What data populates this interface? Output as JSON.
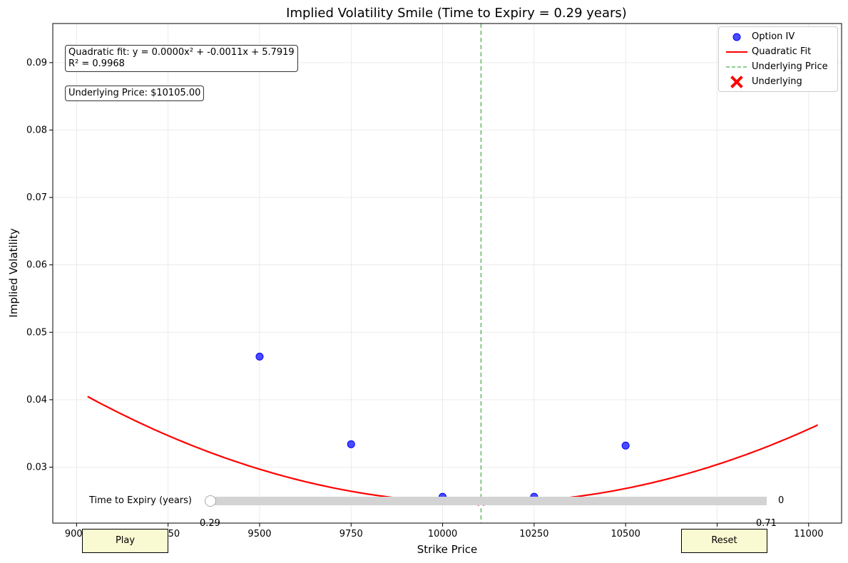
{
  "chart_data": {
    "type": "scatter",
    "title": "Implied Volatility Smile (Time to Expiry = 0.29 years)",
    "xlabel": "Strike Price",
    "ylabel": "Implied Volatility",
    "xlim": [
      8935,
      11090
    ],
    "ylim": [
      0.0217,
      0.0958
    ],
    "xticks": [
      9000,
      9250,
      9500,
      9750,
      10000,
      10250,
      10500,
      10750,
      11000
    ],
    "xtick_labels": [
      "9000",
      "9250",
      "9500",
      "9750",
      "10000",
      "10250",
      "10500",
      "10750",
      "11000"
    ],
    "yticks": [
      0.03,
      0.04,
      0.05,
      0.06,
      0.07,
      0.08,
      0.09
    ],
    "ytick_labels": [
      "0.03",
      "0.04",
      "0.05",
      "0.06",
      "0.07",
      "0.08",
      "0.09"
    ],
    "grid": true,
    "legend_position": "top-right",
    "series": [
      {
        "name": "Option IV",
        "kind": "scatter",
        "color": "#0000ff",
        "x": [
          9500,
          9750,
          10000,
          10250,
          10500
        ],
        "y": [
          0.0464,
          0.0334,
          0.0256,
          0.0256,
          0.0332
        ]
      },
      {
        "name": "Quadratic Fit",
        "kind": "line",
        "color": "#ff0000",
        "x_range": [
          9030,
          11025
        ],
        "vertex_x": 10105,
        "vertex_y": 0.0247,
        "curvature": 1.365e-08
      },
      {
        "name": "Underlying Price",
        "kind": "vline",
        "color": "#2ca02c",
        "x": 10105
      },
      {
        "name": "Underlying",
        "kind": "marker",
        "color": "#ff0000",
        "x": 10105,
        "y": 0.0249
      }
    ],
    "annotations": {
      "fit_text": "Quadratic fit: y = 0.0000x² + -0.0011x + 5.7919\nR² = 0.9968",
      "price_text": "Underlying Price: $10105.00"
    }
  },
  "legend": {
    "items": [
      {
        "label": "Option IV",
        "icon": "circle-marker-icon"
      },
      {
        "label": "Quadratic Fit",
        "icon": "line-icon"
      },
      {
        "label": "Underlying Price",
        "icon": "dashed-line-icon"
      },
      {
        "label": "Underlying",
        "icon": "x-marker-icon"
      }
    ]
  },
  "slider": {
    "label": "Time to Expiry (years)",
    "value_text": "0",
    "min_label": "0.29",
    "max_label": "0.71"
  },
  "buttons": {
    "play": "Play",
    "reset": "Reset"
  },
  "colors": {
    "scatter": "#0000ff",
    "fit": "#ff0000",
    "underlying_line": "#2ca02c",
    "button_bg": "#fafad2"
  }
}
